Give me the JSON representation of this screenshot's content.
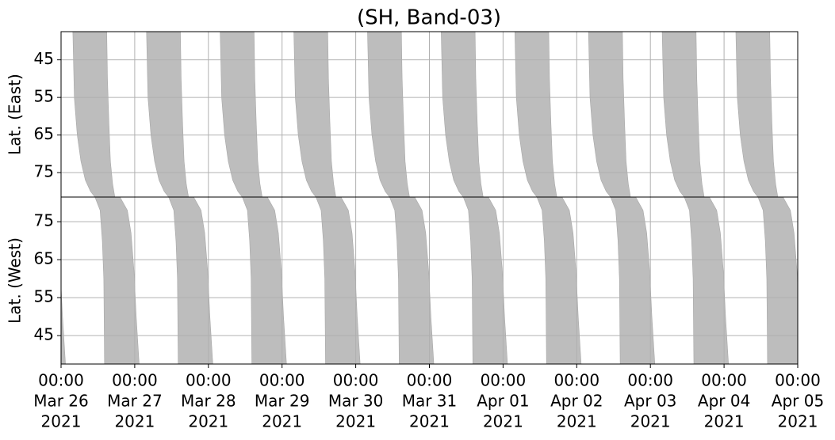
{
  "chart_data": [
    {
      "type": "swath",
      "title": "(SH, Band-03)",
      "ylabel": "Lat. (East)",
      "invert_y": true,
      "grid": true,
      "color": "#bdbdbd",
      "xlim": [
        0,
        10
      ],
      "xticks": [
        0,
        1,
        2,
        3,
        4,
        5,
        6,
        7,
        8,
        9,
        10
      ],
      "ylim": [
        37.5,
        81.5
      ],
      "yticks": [
        45,
        55,
        65,
        75
      ],
      "swath_lat": [
        37.5,
        55,
        65,
        72,
        77,
        80,
        81.5,
        81.5,
        78,
        72,
        62,
        50,
        37.5
      ],
      "swaths": [
        [
          0.16,
          0.18,
          0.22,
          0.27,
          0.33,
          0.4,
          0.46,
          0.73,
          0.7,
          0.67,
          0.65,
          0.63,
          0.62
        ],
        [
          1.16,
          1.18,
          1.22,
          1.27,
          1.33,
          1.4,
          1.46,
          1.73,
          1.7,
          1.67,
          1.65,
          1.63,
          1.62
        ],
        [
          2.16,
          2.18,
          2.22,
          2.27,
          2.33,
          2.4,
          2.46,
          2.73,
          2.7,
          2.67,
          2.65,
          2.63,
          2.62
        ],
        [
          3.16,
          3.18,
          3.22,
          3.27,
          3.33,
          3.4,
          3.46,
          3.73,
          3.7,
          3.67,
          3.65,
          3.63,
          3.62
        ],
        [
          4.16,
          4.18,
          4.22,
          4.27,
          4.33,
          4.4,
          4.46,
          4.73,
          4.7,
          4.67,
          4.65,
          4.63,
          4.62
        ],
        [
          5.16,
          5.18,
          5.22,
          5.27,
          5.33,
          5.4,
          5.46,
          5.73,
          5.7,
          5.67,
          5.65,
          5.63,
          5.62
        ],
        [
          6.16,
          6.18,
          6.22,
          6.27,
          6.33,
          6.4,
          6.46,
          6.73,
          6.7,
          6.67,
          6.65,
          6.63,
          6.62
        ],
        [
          7.16,
          7.18,
          7.22,
          7.27,
          7.33,
          7.4,
          7.46,
          7.73,
          7.7,
          7.67,
          7.65,
          7.63,
          7.62
        ],
        [
          8.16,
          8.18,
          8.22,
          8.27,
          8.33,
          8.4,
          8.46,
          8.73,
          8.7,
          8.67,
          8.65,
          8.63,
          8.62
        ],
        [
          9.16,
          9.18,
          9.22,
          9.27,
          9.33,
          9.4,
          9.46,
          9.73,
          9.7,
          9.67,
          9.65,
          9.63,
          9.62
        ]
      ]
    },
    {
      "type": "swath",
      "ylabel": "Lat. (West)",
      "invert_y": false,
      "grid": true,
      "color": "#bdbdbd",
      "xlim": [
        0,
        10
      ],
      "xticks": [
        {
          "value": 0,
          "label": [
            "00:00",
            "Mar 26",
            "2021"
          ]
        },
        {
          "value": 1,
          "label": [
            "00:00",
            "Mar 27",
            "2021"
          ]
        },
        {
          "value": 2,
          "label": [
            "00:00",
            "Mar 28",
            "2021"
          ]
        },
        {
          "value": 3,
          "label": [
            "00:00",
            "Mar 29",
            "2021"
          ]
        },
        {
          "value": 4,
          "label": [
            "00:00",
            "Mar 30",
            "2021"
          ]
        },
        {
          "value": 5,
          "label": [
            "00:00",
            "Mar 31",
            "2021"
          ]
        },
        {
          "value": 6,
          "label": [
            "00:00",
            "Apr 01",
            "2021"
          ]
        },
        {
          "value": 7,
          "label": [
            "00:00",
            "Apr 02",
            "2021"
          ]
        },
        {
          "value": 8,
          "label": [
            "00:00",
            "Apr 03",
            "2021"
          ]
        },
        {
          "value": 9,
          "label": [
            "00:00",
            "Apr 04",
            "2021"
          ]
        },
        {
          "value": 10,
          "label": [
            "00:00",
            "Apr 05",
            "2021"
          ]
        }
      ],
      "ylim": [
        37.5,
        81.5
      ],
      "yticks": [
        45,
        55,
        65,
        75
      ],
      "swath_lat": [
        81.5,
        78,
        70,
        60,
        37.5,
        37.5,
        50,
        62,
        72,
        78,
        81.5
      ],
      "swaths": [
        [
          -0.54,
          -0.47,
          -0.44,
          -0.42,
          -0.41,
          0.06,
          0.02,
          -0.01,
          -0.05,
          -0.1,
          -0.2
        ],
        [
          0.46,
          0.53,
          0.56,
          0.58,
          0.59,
          1.06,
          1.02,
          0.99,
          0.95,
          0.9,
          0.8
        ],
        [
          1.46,
          1.53,
          1.56,
          1.58,
          1.59,
          2.06,
          2.02,
          1.99,
          1.95,
          1.9,
          1.8
        ],
        [
          2.46,
          2.53,
          2.56,
          2.58,
          2.59,
          3.06,
          3.02,
          2.99,
          2.95,
          2.9,
          2.8
        ],
        [
          3.46,
          3.53,
          3.56,
          3.58,
          3.59,
          4.06,
          4.02,
          3.99,
          3.95,
          3.9,
          3.8
        ],
        [
          4.46,
          4.53,
          4.56,
          4.58,
          4.59,
          5.06,
          5.02,
          4.99,
          4.95,
          4.9,
          4.8
        ],
        [
          5.46,
          5.53,
          5.56,
          5.58,
          5.59,
          6.06,
          6.02,
          5.99,
          5.95,
          5.9,
          5.8
        ],
        [
          6.46,
          6.53,
          6.56,
          6.58,
          6.59,
          7.06,
          7.02,
          6.99,
          6.95,
          6.9,
          6.8
        ],
        [
          7.46,
          7.53,
          7.56,
          7.58,
          7.59,
          8.06,
          8.02,
          7.99,
          7.95,
          7.9,
          7.8
        ],
        [
          8.46,
          8.53,
          8.56,
          8.58,
          8.59,
          9.06,
          9.02,
          8.99,
          8.95,
          8.9,
          8.8
        ],
        [
          9.46,
          9.53,
          9.56,
          9.58,
          9.59,
          10.06,
          10.02,
          9.99,
          9.95,
          9.9,
          9.8
        ]
      ]
    }
  ]
}
